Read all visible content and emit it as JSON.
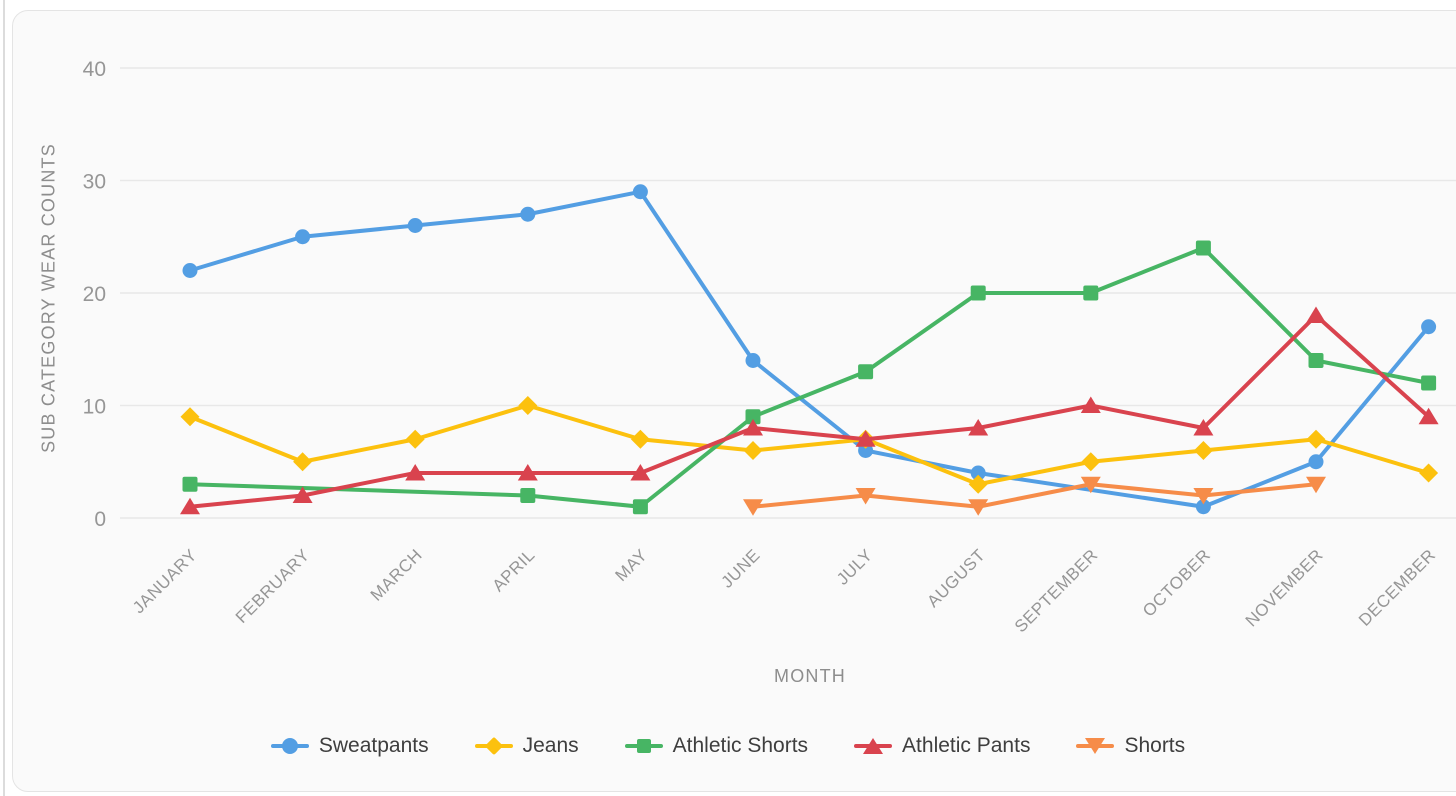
{
  "theme": {
    "page_bg": "#ffffff",
    "card_bg": "#fafafa",
    "card_border": "#e4e4e4",
    "left_rule": "#dcdcdc",
    "grid_color": "#e8e8e8",
    "tick_color": "#969696",
    "axis_title_color": "#8d8d8d",
    "legend_text_color": "#3e3e3e"
  },
  "chart_data": {
    "type": "line",
    "title": "",
    "xlabel": "MONTH",
    "ylabel": "SUB CATEGORY WEAR COUNTS",
    "x_categories": [
      "JANUARY",
      "FEBRUARY",
      "MARCH",
      "APRIL",
      "MAY",
      "JUNE",
      "JULY",
      "AUGUST",
      "SEPTEMBER",
      "OCTOBER",
      "NOVEMBER",
      "DECEMBER"
    ],
    "y_ticks": [
      "0",
      "10",
      "20",
      "30",
      "40"
    ],
    "ylim": [
      0,
      40
    ],
    "grid": "horizontal-only",
    "legend_position": "bottom",
    "span_gaps": true,
    "series": [
      {
        "name": "Sweatpants",
        "color": "#539ee3",
        "point_style": "circle",
        "values": [
          22,
          25,
          26,
          27,
          29,
          14,
          6,
          4,
          null,
          1,
          5,
          17
        ]
      },
      {
        "name": "Jeans",
        "color": "#fcc10e",
        "point_style": "diamond",
        "values": [
          9,
          5,
          7,
          10,
          7,
          6,
          7,
          3,
          5,
          6,
          7,
          4
        ]
      },
      {
        "name": "Athletic Shorts",
        "color": "#47b564",
        "point_style": "square",
        "values": [
          3,
          null,
          null,
          2,
          1,
          9,
          13,
          20,
          20,
          24,
          14,
          12
        ]
      },
      {
        "name": "Athletic Pants",
        "color": "#d9434e",
        "point_style": "triangle-up",
        "values": [
          1,
          2,
          4,
          4,
          4,
          8,
          7,
          8,
          10,
          8,
          18,
          9
        ]
      },
      {
        "name": "Shorts",
        "color": "#f68c49",
        "point_style": "triangle-down",
        "values": [
          null,
          null,
          null,
          null,
          null,
          1,
          2,
          1,
          3,
          2,
          3,
          null
        ]
      }
    ]
  }
}
